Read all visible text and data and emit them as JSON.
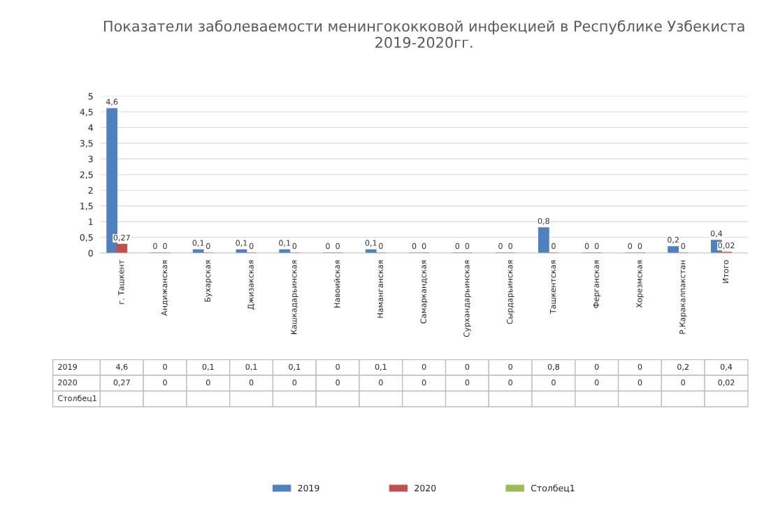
{
  "chart_data": {
    "type": "bar",
    "title": "Показатели заболеваемости менингококковой инфекцией в Республике Узбекиста 2019-2020гг.",
    "categories": [
      "г. Ташкент",
      "Андижанская",
      "Бухарская",
      "Джизакская",
      "Кашкадарьинская",
      "Навоийская",
      "Наманганская",
      "Самаркандская",
      "Сурхандарьинская",
      "Сырдарьинская",
      "Ташкентская",
      "Ферганская",
      "Хорезмская",
      "Р.Каракалпакстан",
      "Итого"
    ],
    "series": [
      {
        "name": "2019",
        "color": "#4f81bd",
        "values": [
          4.6,
          0,
          0.1,
          0.1,
          0.1,
          0,
          0.1,
          0,
          0,
          0,
          0.8,
          0,
          0,
          0.2,
          0.4
        ],
        "value_labels": [
          "4,6",
          "0",
          "0,1",
          "0,1",
          "0,1",
          "0",
          "0,1",
          "0",
          "0",
          "0",
          "0,8",
          "0",
          "0",
          "0,2",
          "0,4"
        ]
      },
      {
        "name": "2020",
        "color": "#c0504d",
        "values": [
          0.27,
          0,
          0,
          0,
          0,
          0,
          0,
          0,
          0,
          0,
          0,
          0,
          0,
          0,
          0.02
        ],
        "value_labels": [
          "0,27",
          "0",
          "0",
          "0",
          "0",
          "0",
          "0",
          "0",
          "0",
          "0",
          "0",
          "0",
          "0",
          "0",
          "0,02"
        ]
      },
      {
        "name": "Столбец1",
        "color": "#9bbb59",
        "values": [
          null,
          null,
          null,
          null,
          null,
          null,
          null,
          null,
          null,
          null,
          null,
          null,
          null,
          null,
          null
        ],
        "value_labels": [
          null,
          null,
          null,
          null,
          null,
          null,
          null,
          null,
          null,
          null,
          null,
          null,
          null,
          null,
          null
        ]
      }
    ],
    "ylim": [
      0,
      5
    ],
    "yticks": [
      0,
      {
        "value": 0.5,
        "label": "0,5"
      },
      1,
      {
        "value": 1.5,
        "label": "1,5"
      },
      2,
      {
        "value": 2.5,
        "label": "2,5"
      },
      3,
      {
        "value": 3.5,
        "label": "3,5"
      },
      4,
      {
        "value": 4.5,
        "label": "4,5"
      },
      5
    ],
    "grid": "y",
    "legend": "bottom"
  }
}
